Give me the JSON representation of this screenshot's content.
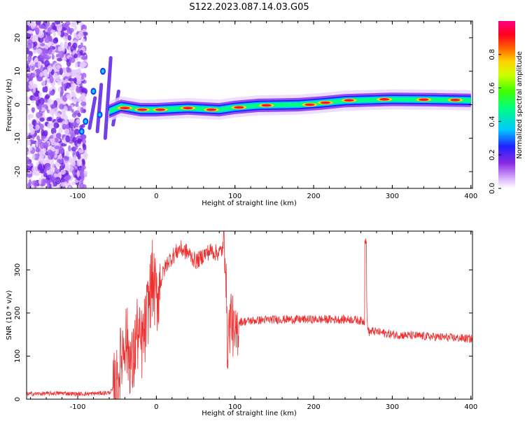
{
  "title": "S122.2023.087.14.03.G05",
  "colors": {
    "snr_line": "#ee3030",
    "axis": "#000000",
    "background": "#ffffff"
  },
  "chart_data": [
    {
      "type": "heatmap",
      "xlabel": "Height of straight line (km)",
      "ylabel": "Frequency (Hz)",
      "xlim": [
        -165,
        402
      ],
      "ylim": [
        -25,
        25
      ],
      "x_ticks": [
        -100,
        0,
        100,
        200,
        300,
        400
      ],
      "y_ticks": [
        -20,
        -10,
        0,
        10,
        20
      ],
      "colorbar": {
        "label": "Normalized spectral amplitude",
        "range": [
          0.0,
          1.0
        ],
        "ticks": [
          "0.0",
          "0.2",
          "0.4",
          "0.6",
          "0.8"
        ],
        "colormap": "rainbow (white/violet to red/magenta)"
      },
      "description_points": {
        "ridge_center_hz": [
          [
            -60,
            -2
          ],
          [
            -45,
            -0.5
          ],
          [
            -20,
            -1.5
          ],
          [
            0,
            -1.5
          ],
          [
            40,
            -1
          ],
          [
            80,
            -1.5
          ],
          [
            100,
            -0.8
          ],
          [
            130,
            -0.2
          ],
          [
            180,
            0
          ],
          [
            210,
            0.5
          ],
          [
            240,
            1.2
          ],
          [
            300,
            1.6
          ],
          [
            350,
            1.5
          ],
          [
            400,
            1.3
          ]
        ],
        "noise_region_x": [
          -165,
          -90
        ]
      }
    },
    {
      "type": "line",
      "xlabel": "Height of straight line (km)",
      "ylabel": "SNR (10 * v/v)",
      "xlim": [
        -165,
        402
      ],
      "ylim": [
        0,
        390
      ],
      "x_ticks": [
        -100,
        0,
        100,
        200,
        300,
        400
      ],
      "y_ticks": [
        0,
        100,
        200,
        300
      ],
      "series": [
        {
          "color": "#ee3030",
          "x": [
            -165,
            -140,
            -120,
            -100,
            -80,
            -60,
            -50,
            -45,
            -40,
            -35,
            -30,
            -25,
            -20,
            -15,
            -10,
            -5,
            0,
            5,
            10,
            15,
            20,
            25,
            30,
            35,
            40,
            45,
            50,
            55,
            60,
            65,
            70,
            75,
            80,
            85,
            88,
            90,
            95,
            100,
            105,
            110,
            120,
            150,
            200,
            250,
            265,
            266,
            268,
            270,
            275,
            300,
            350,
            402
          ],
          "y": [
            12,
            13,
            14,
            12,
            13,
            15,
            30,
            90,
            150,
            110,
            70,
            160,
            120,
            150,
            220,
            280,
            230,
            270,
            300,
            320,
            330,
            340,
            350,
            345,
            340,
            330,
            320,
            325,
            335,
            340,
            345,
            340,
            340,
            350,
            360,
            120,
            200,
            130,
            180,
            180,
            182,
            185,
            185,
            185,
            180,
            375,
            180,
            155,
            158,
            150,
            145,
            140
          ]
        }
      ]
    }
  ]
}
